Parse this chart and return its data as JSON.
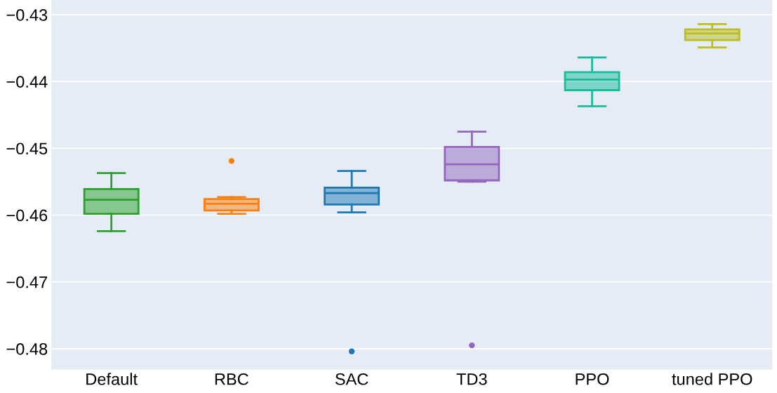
{
  "chart_data": {
    "type": "box",
    "categories": [
      "Default",
      "RBC",
      "SAC",
      "TD3",
      "PPO",
      "tuned PPO"
    ],
    "colors": [
      "#2ca02c",
      "#ff7f0e",
      "#1f77b4",
      "#9467bd",
      "#1abc9c",
      "#bcbd22"
    ],
    "boxes": [
      {
        "low": -0.4624,
        "q1": -0.4598,
        "median": -0.4577,
        "q3": -0.4561,
        "high": -0.4537
      },
      {
        "low": -0.4598,
        "q1": -0.4593,
        "median": -0.4583,
        "q3": -0.4576,
        "high": -0.4573,
        "outliers": [
          -0.4519
        ]
      },
      {
        "low": -0.4596,
        "q1": -0.4584,
        "median": -0.4567,
        "q3": -0.4559,
        "high": -0.4534,
        "outliers": [
          -0.4804
        ]
      },
      {
        "low": -0.455,
        "q1": -0.4548,
        "median": -0.4524,
        "q3": -0.4498,
        "high": -0.4475,
        "outliers": [
          -0.4795
        ]
      },
      {
        "low": -0.4437,
        "q1": -0.4413,
        "median": -0.4397,
        "q3": -0.4386,
        "high": -0.4364
      },
      {
        "low": -0.4349,
        "q1": -0.4338,
        "median": -0.4328,
        "q3": -0.4322,
        "high": -0.4314
      }
    ],
    "ylim": [
      -0.4831,
      -0.4278
    ],
    "yticks": [
      -0.48,
      -0.47,
      -0.46,
      -0.45,
      -0.44,
      -0.43
    ],
    "grid": "y"
  }
}
